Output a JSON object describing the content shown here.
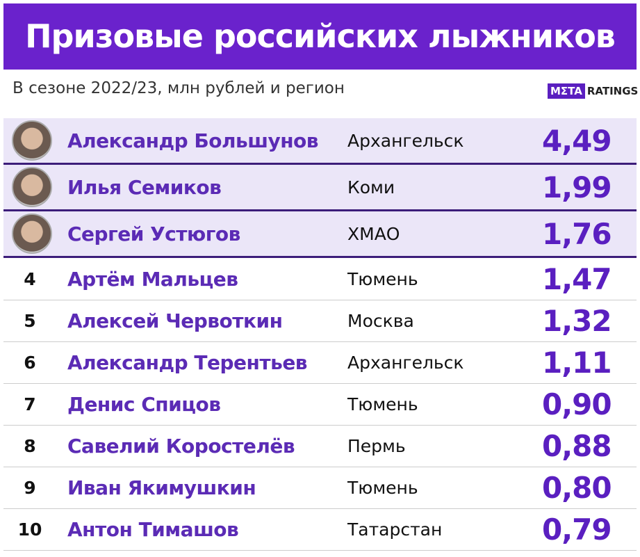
{
  "header": {
    "title": "Призовые российских лыжников",
    "subtitle": "В сезоне 2022/23, млн рублей и регион",
    "logo": {
      "brand": "MΣTA",
      "suffix": "RATINGS"
    }
  },
  "table": {
    "rows": [
      {
        "name": "Александр Большунов",
        "region": "Архангельск",
        "value": "4,49"
      },
      {
        "name": "Илья Семиков",
        "region": "Коми",
        "value": "1,99"
      },
      {
        "name": "Сергей Устюгов",
        "region": "ХМАО",
        "value": "1,76"
      },
      {
        "rank": "4",
        "name": "Артём Мальцев",
        "region": "Тюмень",
        "value": "1,47"
      },
      {
        "rank": "5",
        "name": "Алексей Червоткин",
        "region": "Москва",
        "value": "1,32"
      },
      {
        "rank": "6",
        "name": "Александр Терентьев",
        "region": "Архангельск",
        "value": "1,11"
      },
      {
        "rank": "7",
        "name": "Денис Спицов",
        "region": "Тюмень",
        "value": "0,90"
      },
      {
        "rank": "8",
        "name": "Савелий Коростелёв",
        "region": "Пермь",
        "value": "0,88"
      },
      {
        "rank": "9",
        "name": "Иван Якимушкин",
        "region": "Тюмень",
        "value": "0,80"
      },
      {
        "rank": "10",
        "name": "Антон Тимашов",
        "region": "Татарстан",
        "value": "0,79"
      }
    ]
  }
}
